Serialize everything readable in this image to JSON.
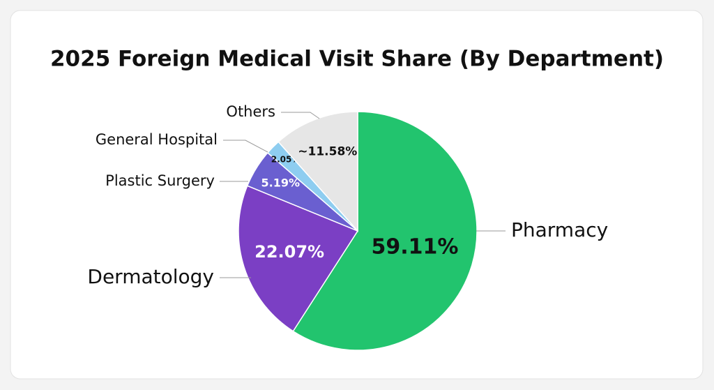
{
  "chart_data": {
    "type": "pie",
    "title": "2025 Foreign Medical Visit Share (By Department)",
    "categories": [
      "Pharmacy",
      "Dermatology",
      "Plastic Surgery",
      "General Hospital",
      "Others"
    ],
    "values": [
      59.11,
      22.07,
      5.19,
      2.05,
      11.58
    ],
    "value_labels": [
      "59.11%",
      "22.07%",
      "5.19%",
      "2.05%",
      "~11.58%"
    ],
    "colors": [
      "#22c46e",
      "#7b3fc4",
      "#6a5fd0",
      "#8ecdf0",
      "#e6e6e6"
    ]
  }
}
